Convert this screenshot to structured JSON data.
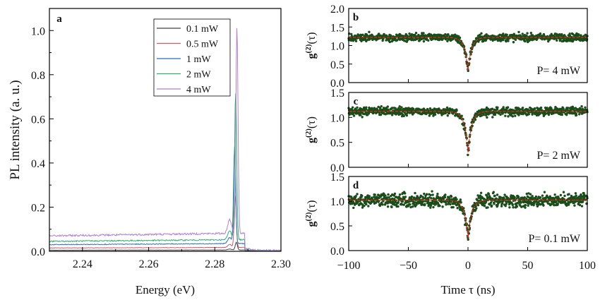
{
  "chart_data": [
    {
      "panel": "a",
      "type": "line",
      "xlabel": "Energy (eV)",
      "ylabel": "PL intensity (a. u.)",
      "xlim": [
        2.23,
        2.3
      ],
      "ylim": [
        0,
        1.1
      ],
      "xticks": [
        "2.24",
        "2.26",
        "2.28",
        "2.30"
      ],
      "yticks": [
        "0.0",
        "0.2",
        "0.4",
        "0.6",
        "0.8",
        "1.0"
      ],
      "legend_position": "top-right",
      "series": [
        {
          "name": "0.1 mW",
          "color": "#404040",
          "baseline": 0.005,
          "peak": 0.04,
          "peak_x": 2.2865
        },
        {
          "name": "0.5 mW",
          "color": "#d9546b",
          "baseline": 0.015,
          "peak": 0.25,
          "peak_x": 2.2862
        },
        {
          "name": "1 mW",
          "color": "#2f72b8",
          "baseline": 0.03,
          "peak": 0.47,
          "peak_x": 2.286
        },
        {
          "name": "2 mW",
          "color": "#2fae6e",
          "baseline": 0.045,
          "peak": 0.71,
          "peak_x": 2.2863
        },
        {
          "name": "4 mW",
          "color": "#b27fd2",
          "baseline": 0.07,
          "peak": 1.0,
          "peak_x": 2.2867
        }
      ]
    },
    {
      "panel": "b",
      "type": "scatter",
      "ylabel_main": "g",
      "ylabel_sup": "(2)",
      "ylabel_tail": "(τ)",
      "annotation": "P= 4 mW",
      "xlim": [
        -100,
        100
      ],
      "ylim": [
        0,
        2.0
      ],
      "yticks": [
        "0.0",
        "0.5",
        "1.0",
        "1.5",
        "2.0"
      ],
      "baseline": 1.22,
      "noise": 0.1,
      "dip_min": 0.33,
      "dip_width_ns": 3,
      "fit_color": "#ff2020",
      "point_color": "#1a4d1a"
    },
    {
      "panel": "c",
      "type": "scatter",
      "ylabel_main": "g",
      "ylabel_sup": "(2)",
      "ylabel_tail": "(τ)",
      "annotation": "P= 2 mW",
      "xlim": [
        -100,
        100
      ],
      "ylim": [
        0,
        1.5
      ],
      "yticks": [
        "0.0",
        "0.5",
        "1.0",
        "1.5"
      ],
      "baseline": 1.12,
      "noise": 0.08,
      "dip_min": 0.3,
      "dip_width_ns": 3,
      "fit_color": "#ff2020",
      "point_color": "#1a4d1a"
    },
    {
      "panel": "d",
      "type": "scatter",
      "ylabel_main": "g",
      "ylabel_sup": "(2)",
      "ylabel_tail": "(τ)",
      "annotation": "P= 0.1 mW",
      "xlabel": "Time τ (ns)",
      "xlim": [
        -100,
        100
      ],
      "ylim": [
        0,
        1.5
      ],
      "yticks": [
        "0.0",
        "0.5",
        "1.0",
        "1.5"
      ],
      "xticks": [
        "−100",
        "−50",
        "0",
        "50",
        "100"
      ],
      "baseline": 1.02,
      "noise": 0.13,
      "dip_min": 0.25,
      "dip_width_ns": 3,
      "fit_color": "#ff2020",
      "point_color": "#1a4d1a"
    }
  ]
}
